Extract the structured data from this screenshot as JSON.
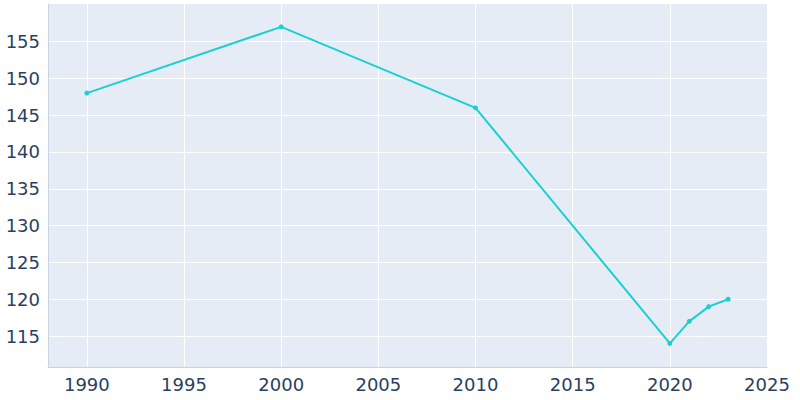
{
  "chart_data": {
    "type": "line",
    "x": [
      1990,
      2000,
      2010,
      2020,
      2021,
      2022,
      2023
    ],
    "values": [
      148,
      157,
      146,
      114,
      117,
      119,
      120
    ],
    "color": "#1ccfd0",
    "marker": "circle",
    "xlim": [
      1988,
      2025
    ],
    "xticks": [
      1990,
      1995,
      2000,
      2005,
      2010,
      2015,
      2020,
      2025
    ],
    "ylim": [
      110.8,
      160.1
    ],
    "yticks": [
      115,
      120,
      125,
      130,
      135,
      140,
      145,
      150,
      155
    ],
    "grid": true
  }
}
